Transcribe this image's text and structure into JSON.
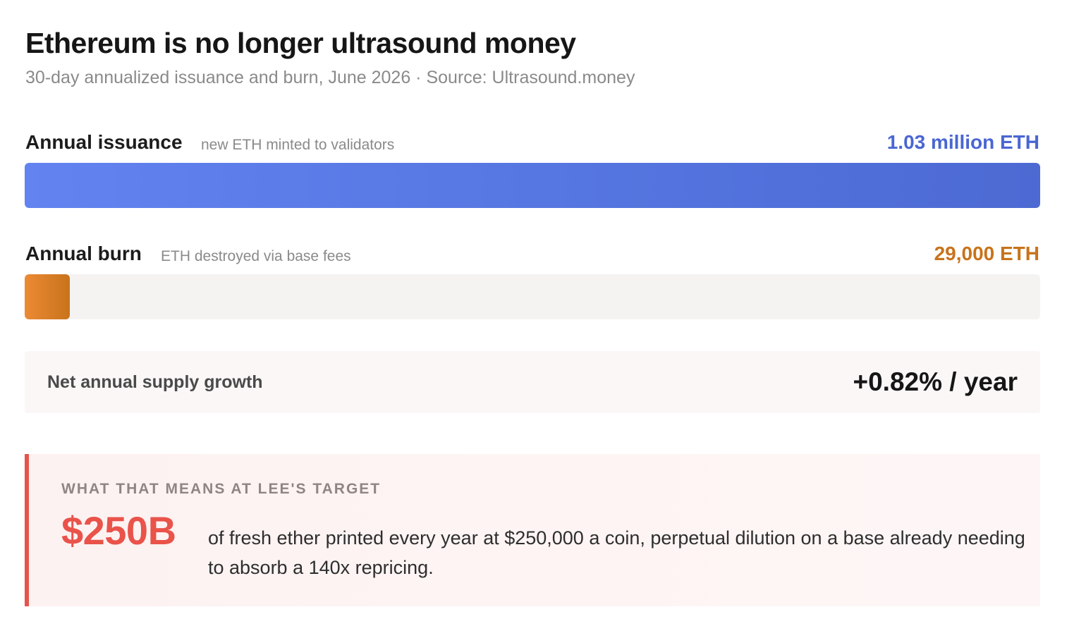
{
  "header": {
    "title": "Ethereum is no longer ultrasound money",
    "subtitle": "30-day annualized issuance and burn, June 2026 · Source: Ultrasound.money"
  },
  "chart_data": {
    "type": "bar",
    "categories": [
      "Annual issuance",
      "Annual burn"
    ],
    "notes": [
      "new ETH minted to validators",
      "ETH destroyed via base fees"
    ],
    "values": [
      1030000,
      29000
    ],
    "value_labels": [
      "1.03 million ETH",
      "29,000 ETH"
    ],
    "unit": "ETH",
    "xlim": [
      0,
      1030000
    ],
    "orientation": "horizontal",
    "colors": [
      "#5a7be8",
      "#d47c24"
    ],
    "grid": false,
    "legend": "none"
  },
  "summary": {
    "label": "Net annual supply growth",
    "value": "+0.82% / year"
  },
  "callout": {
    "kicker": "WHAT THAT MEANS AT LEE'S TARGET",
    "big": "$250B",
    "text": "of fresh ether printed every year at $250,000 a coin, perpetual dilution on a base already needing to absorb a 140x repricing.",
    "accent": "#e9534a"
  },
  "colors": {
    "issuance_text": "#4a66d2",
    "burn_text": "#c8731b"
  }
}
